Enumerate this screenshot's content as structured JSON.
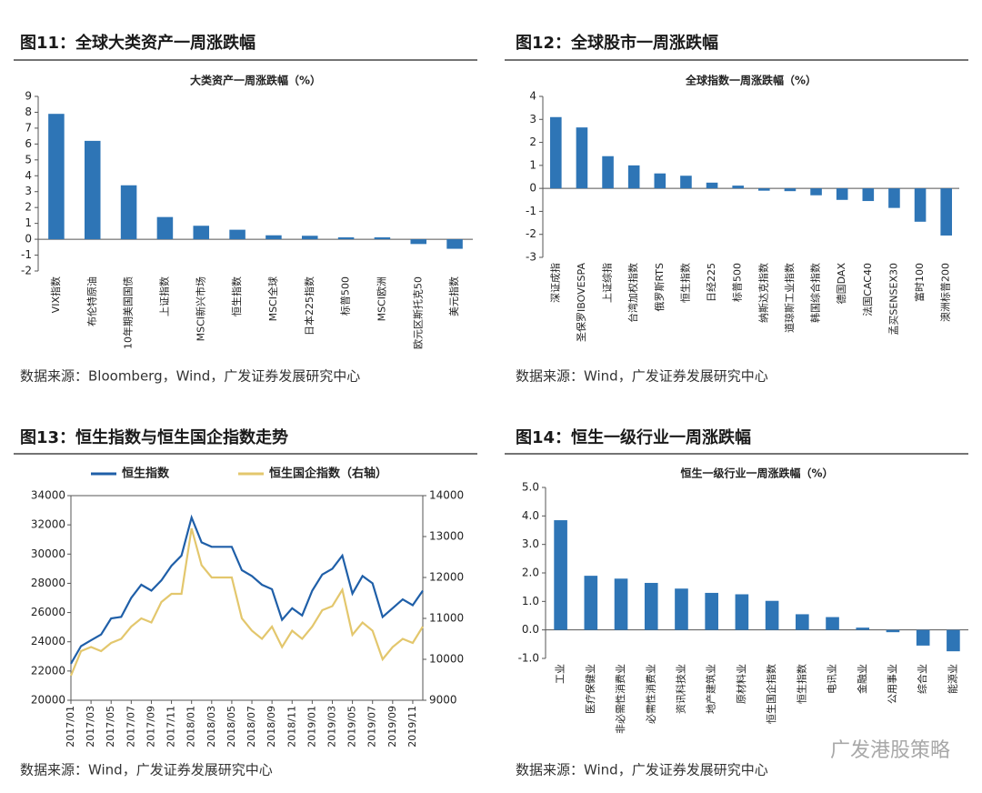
{
  "chart_data": [
    {
      "figure_title": "图11：全球大类资产一周涨跌幅",
      "type": "bar",
      "title": "大类资产一周涨跌幅（%）",
      "categories": [
        "VIX指数",
        "布伦特原油",
        "10年期美国国债",
        "上证指数",
        "MSCI新兴市场",
        "恒生指数",
        "MSCI全球",
        "日本225指数",
        "标普500",
        "MSCI欧洲",
        "欧元区斯托克50",
        "美元指数"
      ],
      "values": [
        7.9,
        6.2,
        3.4,
        1.4,
        0.85,
        0.6,
        0.25,
        0.22,
        0.12,
        0.12,
        -0.3,
        -0.6
      ],
      "color": "#2e75b6",
      "ylim": [
        -2,
        9
      ],
      "yticks": [
        -2,
        -1,
        0,
        1,
        2,
        3,
        4,
        5,
        6,
        7,
        8,
        9
      ],
      "source": "数据来源：Bloomberg，Wind，广发证券发展研究中心"
    },
    {
      "figure_title": "图12：全球股市一周涨跌幅",
      "type": "bar",
      "title": "全球指数一周涨跌幅（%）",
      "categories": [
        "深证成指",
        "圣保罗IBOVESPA",
        "上证综指",
        "台湾加权指数",
        "俄罗斯RTS",
        "恒生指数",
        "日经225",
        "标普500",
        "纳斯达克指数",
        "道琼斯工业指数",
        "韩国综合指数",
        "德国DAX",
        "法国CAC40",
        "孟买SENSEX30",
        "富时100",
        "澳洲标普200"
      ],
      "values": [
        3.1,
        2.65,
        1.4,
        1.0,
        0.65,
        0.55,
        0.25,
        0.12,
        -0.1,
        -0.12,
        -0.3,
        -0.5,
        -0.55,
        -0.85,
        -1.45,
        -2.05
      ],
      "color": "#2e75b6",
      "ylim": [
        -3,
        4
      ],
      "yticks": [
        -3,
        -2,
        -1,
        0,
        1,
        2,
        3,
        4
      ],
      "source": "数据来源：Wind，广发证券发展研究中心"
    },
    {
      "figure_title": "图13：恒生指数与恒生国企指数走势",
      "type": "line",
      "categories": [
        "2017/01",
        null,
        "2017/03",
        null,
        "2017/05",
        null,
        "2017/07",
        null,
        "2017/09",
        null,
        "2017/11",
        null,
        "2018/01",
        null,
        "2018/03",
        null,
        "2018/05",
        null,
        "2018/07",
        null,
        "2018/09",
        null,
        "2018/11",
        null,
        "2019/01",
        null,
        "2019/03",
        null,
        "2019/05",
        null,
        "2019/07",
        null,
        "2019/09",
        null,
        "2019/11",
        null
      ],
      "series": [
        {
          "name": "恒生指数",
          "color": "#1f5fa8",
          "values": [
            22500,
            23700,
            24100,
            24500,
            25600,
            25700,
            27000,
            27900,
            27500,
            28200,
            29200,
            29900,
            32500,
            30800,
            30500,
            30500,
            30500,
            28900,
            28500,
            27900,
            27600,
            25500,
            26300,
            25800,
            27500,
            28600,
            29000,
            29900,
            27300,
            28500,
            28000,
            25700,
            26300,
            26900,
            26500,
            27500
          ]
        },
        {
          "name": "恒生国企指数（右轴）",
          "color": "#e3c76d",
          "axis": "y2",
          "values": [
            9600,
            10200,
            10300,
            10200,
            10400,
            10500,
            10800,
            11000,
            10900,
            11400,
            11600,
            11600,
            13200,
            12300,
            12000,
            12000,
            12000,
            11000,
            10700,
            10500,
            10800,
            10300,
            10700,
            10500,
            10800,
            11200,
            11300,
            11700,
            10600,
            10900,
            10700,
            10000,
            10300,
            10500,
            10400,
            10800
          ]
        }
      ],
      "ylim": [
        20000,
        34000
      ],
      "yticks": [
        20000,
        22000,
        24000,
        26000,
        28000,
        30000,
        32000,
        34000
      ],
      "y2lim": [
        9000,
        14000
      ],
      "y2ticks": [
        9000,
        10000,
        11000,
        12000,
        13000,
        14000
      ],
      "source": "数据来源：Wind，广发证券发展研究中心"
    },
    {
      "figure_title": "图14：恒生一级行业一周涨跌幅",
      "type": "bar",
      "title": "恒生一级行业一周涨跌幅（%）",
      "categories": [
        "工业",
        "医疗保健业",
        "非必需性消费业",
        "必需性消费业",
        "资讯科技业",
        "地产建筑业",
        "原材料业",
        "恒生国企指数",
        "恒生指数",
        "电讯业",
        "金融业",
        "公用事业",
        "综合业",
        "能源业"
      ],
      "values": [
        3.85,
        1.9,
        1.8,
        1.65,
        1.45,
        1.3,
        1.25,
        1.02,
        0.55,
        0.45,
        0.08,
        -0.08,
        -0.55,
        -0.75
      ],
      "color": "#2e75b6",
      "ylim": [
        -1,
        5
      ],
      "yticks": [
        {
          "value": -1,
          "label": "-1.0"
        },
        {
          "value": 0,
          "label": "0.0"
        },
        {
          "value": 1,
          "label": "1.0"
        },
        {
          "value": 2,
          "label": "2.0"
        },
        {
          "value": 3,
          "label": "3.0"
        },
        {
          "value": 4,
          "label": "4.0"
        },
        {
          "value": 5,
          "label": "5.0"
        }
      ],
      "source": "数据来源：Wind，广发证券发展研究中心"
    }
  ],
  "watermark": "广发港股策略"
}
